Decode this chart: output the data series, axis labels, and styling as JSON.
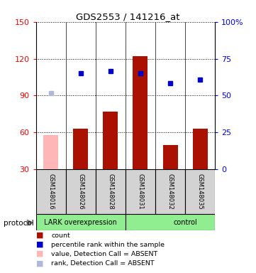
{
  "title": "GDS2553 / 141216_at",
  "samples": [
    "GSM148016",
    "GSM148026",
    "GSM148028",
    "GSM148031",
    "GSM148032",
    "GSM148035"
  ],
  "bar_values": [
    58,
    63,
    77,
    122,
    50,
    63
  ],
  "bar_colors": [
    "#ffb6b6",
    "#aa1100",
    "#aa1100",
    "#aa1100",
    "#aa1100",
    "#aa1100"
  ],
  "rank_values": [
    92,
    108,
    110,
    108,
    100,
    103
  ],
  "rank_colors": [
    "#b0b8d8",
    "#0000cc",
    "#0000cc",
    "#0000cc",
    "#0000cc",
    "#0000cc"
  ],
  "ylim_left": [
    30,
    150
  ],
  "ylim_right": [
    0,
    100
  ],
  "yticks_left": [
    30,
    60,
    90,
    120,
    150
  ],
  "ytick_labels_left": [
    "30",
    "60",
    "90",
    "120",
    "150"
  ],
  "yticks_right_pct": [
    0,
    25,
    50,
    75,
    100
  ],
  "ytick_labels_right": [
    "0",
    "25",
    "50",
    "75",
    "100%"
  ],
  "protocol_groups": [
    {
      "label": "LARK overexpression",
      "start": 0,
      "end": 3,
      "color": "#90ee90"
    },
    {
      "label": "control",
      "start": 3,
      "end": 6,
      "color": "#90ee90"
    }
  ],
  "protocol_label": "protocol",
  "legend_items": [
    {
      "color": "#aa1100",
      "label": "count"
    },
    {
      "color": "#0000cc",
      "label": "percentile rank within the sample"
    },
    {
      "color": "#ffb6b6",
      "label": "value, Detection Call = ABSENT"
    },
    {
      "color": "#b0b8d8",
      "label": "rank, Detection Call = ABSENT"
    }
  ],
  "bar_width": 0.5,
  "background_color": "#ffffff",
  "sample_box_color": "#d3d3d3",
  "grid_color": "#000000"
}
